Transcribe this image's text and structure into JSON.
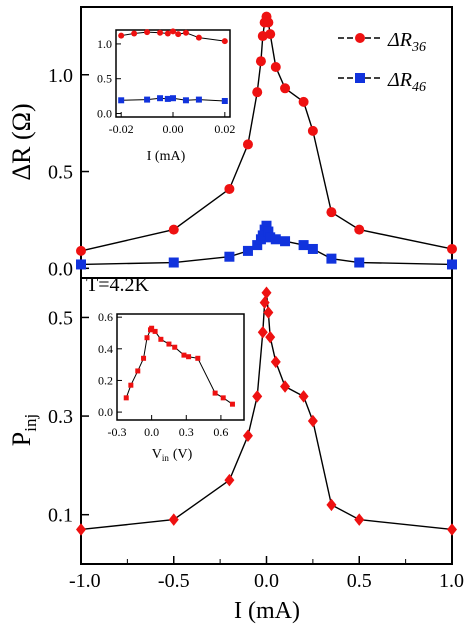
{
  "chart_data": [
    {
      "type": "line",
      "panel": "top",
      "xlim": [
        -1.0,
        1.0
      ],
      "ylim": [
        -0.05,
        1.35
      ],
      "yticks": [
        "0.0",
        "0.5",
        "1.0"
      ],
      "ylabel": "ΔR (Ω)",
      "legend_placement": "top-right",
      "series": [
        {
          "name": "ΔR36",
          "color": "#ee1111",
          "marker": "circle",
          "x": [
            -1.0,
            -0.5,
            -0.2,
            -0.1,
            -0.05,
            -0.03,
            -0.02,
            -0.01,
            0.0,
            0.01,
            0.02,
            0.05,
            0.1,
            0.2,
            0.25,
            0.35,
            0.5,
            1.0
          ],
          "y": [
            0.09,
            0.2,
            0.41,
            0.64,
            0.91,
            1.07,
            1.2,
            1.27,
            1.3,
            1.27,
            1.21,
            1.04,
            0.93,
            0.86,
            0.71,
            0.29,
            0.2,
            0.1
          ]
        },
        {
          "name": "ΔR46",
          "color": "#1133dd",
          "marker": "square",
          "x": [
            -1.0,
            -0.5,
            -0.2,
            -0.1,
            -0.05,
            -0.03,
            -0.02,
            -0.01,
            0.0,
            0.01,
            0.02,
            0.05,
            0.1,
            0.2,
            0.25,
            0.35,
            0.5,
            1.0
          ],
          "y": [
            0.02,
            0.03,
            0.06,
            0.09,
            0.12,
            0.15,
            0.17,
            0.2,
            0.22,
            0.19,
            0.16,
            0.15,
            0.14,
            0.12,
            0.1,
            0.05,
            0.03,
            0.02
          ]
        }
      ],
      "inset": {
        "xlim": [
          -0.022,
          0.022
        ],
        "ylim": [
          -0.05,
          1.2
        ],
        "xticks": [
          "-0.02",
          "0.00",
          "0.02"
        ],
        "yticks": [
          "0.0",
          "0.5",
          "1.0"
        ],
        "xlabel": "I (mA)",
        "series": [
          {
            "name": "ΔR36",
            "color": "#ee1111",
            "marker": "circle",
            "x": [
              -0.02,
              -0.015,
              -0.01,
              -0.005,
              -0.002,
              0.0,
              0.002,
              0.005,
              0.01,
              0.02
            ],
            "y": [
              1.12,
              1.15,
              1.17,
              1.16,
              1.15,
              1.18,
              1.14,
              1.16,
              1.09,
              1.04
            ]
          },
          {
            "name": "ΔR46",
            "color": "#1133dd",
            "marker": "square",
            "x": [
              -0.02,
              -0.01,
              -0.005,
              -0.002,
              0.0,
              0.005,
              0.01,
              0.02
            ],
            "y": [
              0.19,
              0.2,
              0.22,
              0.21,
              0.22,
              0.19,
              0.2,
              0.18
            ]
          }
        ]
      }
    },
    {
      "type": "line",
      "panel": "bottom",
      "xlim": [
        -1.0,
        1.0
      ],
      "ylim": [
        0.0,
        0.58
      ],
      "xticks": [
        "-1.0",
        "-0.5",
        "0.0",
        "0.5",
        "1.0"
      ],
      "yticks": [
        "0.1",
        "0.3",
        "0.5"
      ],
      "xlabel": "I (mA)",
      "ylabel": "P",
      "ylabel_sub": "inj",
      "annotation": "T=4.2K",
      "series": [
        {
          "name": "Pinj",
          "color": "#ee1111",
          "marker": "diamond",
          "x": [
            -1.0,
            -0.5,
            -0.2,
            -0.1,
            -0.05,
            -0.02,
            -0.01,
            0.0,
            0.01,
            0.02,
            0.05,
            0.1,
            0.2,
            0.25,
            0.35,
            0.5,
            1.0
          ],
          "y": [
            0.07,
            0.09,
            0.17,
            0.26,
            0.34,
            0.47,
            0.53,
            0.55,
            0.51,
            0.46,
            0.41,
            0.36,
            0.34,
            0.29,
            0.12,
            0.09,
            0.07
          ]
        }
      ],
      "inset": {
        "xlim": [
          -0.3,
          0.8
        ],
        "ylim": [
          -0.05,
          0.62
        ],
        "xticks": [
          "-0.3",
          "0.0",
          "0.3",
          "0.6"
        ],
        "yticks": [
          "0.0",
          "0.2",
          "0.4",
          "0.6"
        ],
        "xlabel": "V",
        "xlabel_sub": "in",
        "xlabel_unit": "(V)",
        "series": [
          {
            "name": "Pinj",
            "color": "#ee1111",
            "marker": "square",
            "x": [
              -0.22,
              -0.18,
              -0.12,
              -0.07,
              -0.04,
              -0.01,
              0.0,
              0.03,
              0.08,
              0.15,
              0.2,
              0.28,
              0.32,
              0.4,
              0.55,
              0.62,
              0.7
            ],
            "y": [
              0.09,
              0.17,
              0.26,
              0.34,
              0.47,
              0.52,
              0.53,
              0.51,
              0.46,
              0.43,
              0.41,
              0.36,
              0.35,
              0.34,
              0.12,
              0.09,
              0.05
            ]
          }
        ]
      }
    }
  ]
}
